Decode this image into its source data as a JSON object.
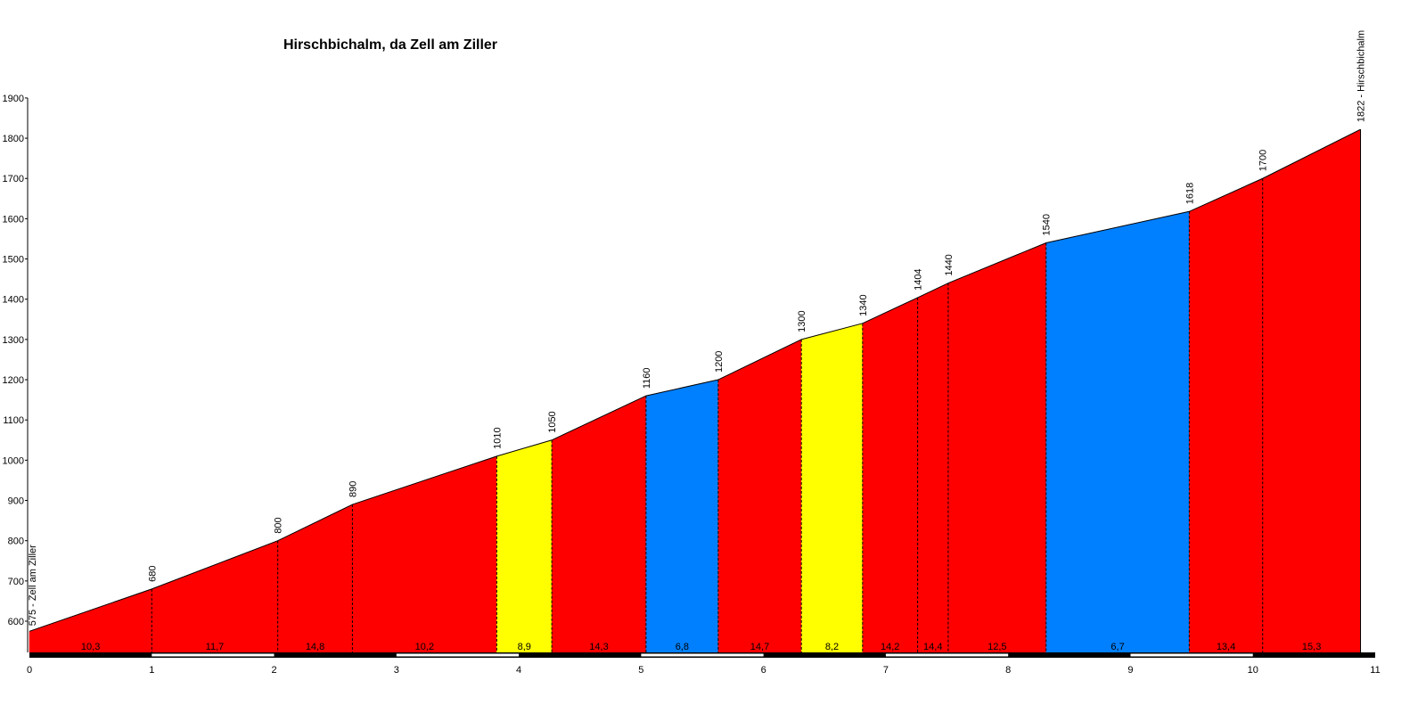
{
  "chart_data": {
    "type": "area",
    "title": "Hirschbichalm, da Zell am Ziller",
    "xlabel": "",
    "ylabel": "",
    "xlim": [
      0,
      11
    ],
    "ylim": [
      540,
      1900
    ],
    "x_ticks": [
      "0",
      "1",
      "2",
      "3",
      "4",
      "5",
      "6",
      "7",
      "8",
      "9",
      "10",
      "11"
    ],
    "y_ticks": [
      "600",
      "700",
      "800",
      "900",
      "1000",
      "1100",
      "1200",
      "1300",
      "1400",
      "1500",
      "1600",
      "1700",
      "1800",
      "1900"
    ],
    "points": [
      {
        "x": 0,
        "y": 575,
        "label": "575 - Zell am Ziller"
      },
      {
        "x": 1.0,
        "y": 680,
        "label": "680"
      },
      {
        "x": 2.03,
        "y": 800,
        "label": "800"
      },
      {
        "x": 2.64,
        "y": 890,
        "label": "890"
      },
      {
        "x": 3.82,
        "y": 1010,
        "label": "1010"
      },
      {
        "x": 4.27,
        "y": 1050,
        "label": "1050"
      },
      {
        "x": 5.04,
        "y": 1160,
        "label": "1160"
      },
      {
        "x": 5.63,
        "y": 1200,
        "label": "1200"
      },
      {
        "x": 6.31,
        "y": 1300,
        "label": "1300"
      },
      {
        "x": 6.81,
        "y": 1340,
        "label": "1340"
      },
      {
        "x": 7.26,
        "y": 1404,
        "label": "1404"
      },
      {
        "x": 7.51,
        "y": 1440,
        "label": "1440"
      },
      {
        "x": 8.31,
        "y": 1540,
        "label": "1540"
      },
      {
        "x": 9.48,
        "y": 1618,
        "label": "1618"
      },
      {
        "x": 10.08,
        "y": 1700,
        "label": "1700"
      },
      {
        "x": 10.88,
        "y": 1822,
        "label": "1822 - Hirschbichalm"
      }
    ],
    "segments": [
      {
        "from": 0,
        "to": 1.0,
        "grade": "10,3",
        "color": "#ff0000"
      },
      {
        "from": 1.0,
        "to": 2.03,
        "grade": "11,7",
        "color": "#ff0000"
      },
      {
        "from": 2.03,
        "to": 2.64,
        "grade": "14,8",
        "color": "#ff0000"
      },
      {
        "from": 2.64,
        "to": 3.82,
        "grade": "10,2",
        "color": "#ff0000"
      },
      {
        "from": 3.82,
        "to": 4.27,
        "grade": "8,9",
        "color": "#ffff00"
      },
      {
        "from": 4.27,
        "to": 5.04,
        "grade": "14,3",
        "color": "#ff0000"
      },
      {
        "from": 5.04,
        "to": 5.63,
        "grade": "6,8",
        "color": "#0080ff"
      },
      {
        "from": 5.63,
        "to": 6.31,
        "grade": "14,7",
        "color": "#ff0000"
      },
      {
        "from": 6.31,
        "to": 6.81,
        "grade": "8,2",
        "color": "#ffff00"
      },
      {
        "from": 6.81,
        "to": 7.26,
        "grade": "14,2",
        "color": "#ff0000"
      },
      {
        "from": 7.26,
        "to": 7.51,
        "grade": "14,4",
        "color": "#ff0000"
      },
      {
        "from": 7.51,
        "to": 8.31,
        "grade": "12,5",
        "color": "#ff0000"
      },
      {
        "from": 8.31,
        "to": 9.48,
        "grade": "6,7",
        "color": "#0080ff"
      },
      {
        "from": 9.48,
        "to": 10.08,
        "grade": "13,4",
        "color": "#ff0000"
      },
      {
        "from": 10.08,
        "to": 10.88,
        "grade": "15,3",
        "color": "#ff0000"
      }
    ],
    "grid": false,
    "legend": "none"
  }
}
